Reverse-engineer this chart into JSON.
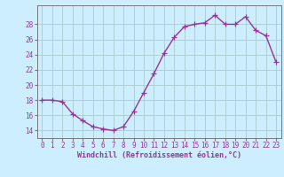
{
  "x": [
    0,
    1,
    2,
    3,
    4,
    5,
    6,
    7,
    8,
    9,
    10,
    11,
    12,
    13,
    14,
    15,
    16,
    17,
    18,
    19,
    20,
    21,
    22,
    23
  ],
  "y": [
    18.0,
    18.0,
    17.8,
    16.2,
    15.3,
    14.5,
    14.2,
    14.0,
    14.5,
    16.5,
    19.0,
    21.5,
    24.2,
    26.3,
    27.7,
    28.0,
    28.2,
    29.2,
    28.0,
    28.0,
    29.0,
    27.2,
    26.5,
    23.0
  ],
  "line_color": "#993399",
  "marker": "+",
  "marker_size": 4,
  "bg_color": "#cceeff",
  "grid_color": "#aacccc",
  "xlabel": "Windchill (Refroidissement éolien,°C)",
  "xlabel_fontsize": 6.0,
  "tick_label_color": "#993399",
  "axis_label_color": "#993399",
  "yticks": [
    14,
    16,
    18,
    20,
    22,
    24,
    26,
    28
  ],
  "ylim": [
    13.0,
    30.5
  ],
  "xlim": [
    -0.5,
    23.5
  ],
  "tick_fontsize": 5.5,
  "spine_color": "#777777",
  "linewidth": 1.0
}
